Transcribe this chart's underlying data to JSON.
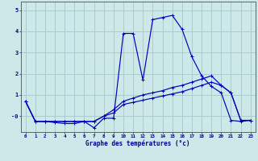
{
  "xlabel": "Graphe des températures (°c)",
  "background_color": "#cce8e8",
  "grid_color": "#aacccc",
  "line_color": "#0000bb",
  "x_ticks": [
    0,
    1,
    2,
    3,
    4,
    5,
    6,
    7,
    8,
    9,
    10,
    11,
    12,
    13,
    14,
    15,
    16,
    17,
    18,
    19,
    20,
    21,
    22,
    23
  ],
  "ylim": [
    -0.75,
    5.4
  ],
  "xlim": [
    -0.5,
    23.5
  ],
  "line1_y": [
    0.7,
    -0.25,
    -0.25,
    -0.3,
    -0.35,
    -0.35,
    -0.25,
    -0.55,
    -0.1,
    -0.1,
    3.9,
    3.9,
    1.7,
    4.55,
    4.65,
    4.75,
    4.1,
    2.8,
    1.9,
    1.4,
    1.1,
    -0.2,
    -0.25,
    -0.2
  ],
  "line2_y": [
    0.7,
    -0.25,
    -0.25,
    -0.25,
    -0.25,
    -0.25,
    -0.25,
    -0.25,
    0.0,
    0.3,
    0.7,
    0.85,
    1.0,
    1.1,
    1.2,
    1.35,
    1.45,
    1.6,
    1.75,
    1.9,
    1.45,
    1.1,
    -0.2,
    -0.2
  ],
  "line3_y": [
    0.7,
    -0.25,
    -0.25,
    -0.25,
    -0.25,
    -0.25,
    -0.25,
    -0.25,
    0.0,
    0.15,
    0.55,
    0.65,
    0.75,
    0.85,
    0.95,
    1.05,
    1.15,
    1.3,
    1.45,
    1.6,
    1.45,
    1.1,
    -0.2,
    -0.2
  ]
}
